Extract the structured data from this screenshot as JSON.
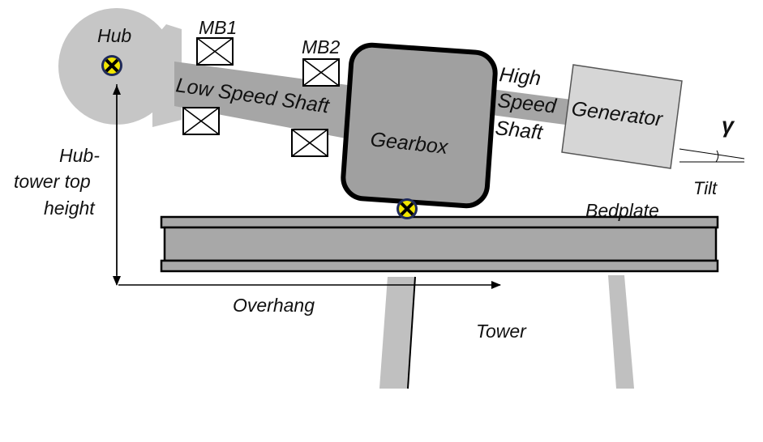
{
  "labels": {
    "hub": "Hub",
    "mb1": "MB1",
    "mb2": "MB2",
    "low_speed_shaft": "Low Speed Shaft",
    "high_speed_shaft": [
      "High",
      "Speed",
      "Shaft"
    ],
    "gearbox": "Gearbox",
    "generator": "Generator",
    "gamma": "γ",
    "tilt": "Tilt",
    "hub_tower_top_height": [
      "Hub-",
      "tower top",
      "height"
    ],
    "bedplate": "Bedplate",
    "overhang": "Overhang",
    "tower": "Tower"
  },
  "colors": {
    "hub": "#c6c6c6",
    "shaft": "#a6a6a6",
    "gearbox": "#a0a0a0",
    "generator": "#d6d6d6",
    "bedplate": "#a8a8a8",
    "tower": "#c0c0c0",
    "marker_yellow": "#f2e600",
    "marker_navy": "#1f2a5a"
  }
}
